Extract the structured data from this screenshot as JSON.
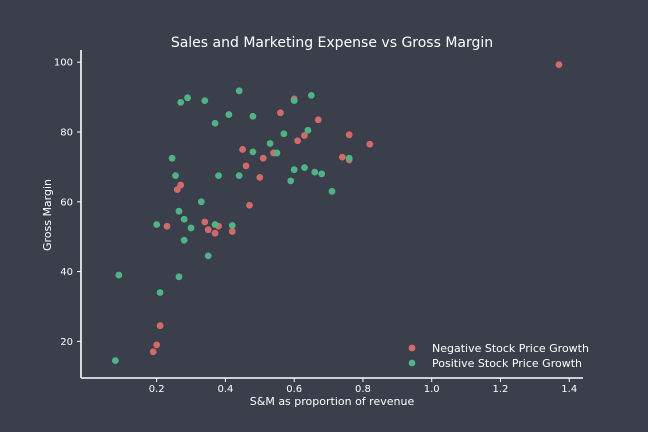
{
  "chart_data": {
    "type": "scatter",
    "title": "Sales and Marketing Expense vs Gross Margin",
    "xlabel": "S&M as proportion of revenue",
    "ylabel": "Gross Margin",
    "xlim": [
      -0.02,
      1.44
    ],
    "ylim": [
      9.5,
      103.5
    ],
    "x_ticks": [
      0.2,
      0.4,
      0.6,
      0.8,
      1.0,
      1.2,
      1.4
    ],
    "x_tick_labels": [
      "0.2",
      "0.4",
      "0.6",
      "0.8",
      "1.0",
      "1.2",
      "1.4"
    ],
    "y_ticks": [
      20,
      40,
      60,
      80,
      100
    ],
    "y_tick_labels": [
      "20",
      "40",
      "60",
      "80",
      "100"
    ],
    "grid": false,
    "legend_position": "bottom-right",
    "series": [
      {
        "name": "Negative Stock Price Growth",
        "color": "#d16b6a",
        "points": [
          [
            0.19,
            17
          ],
          [
            0.2,
            19
          ],
          [
            0.21,
            24.5
          ],
          [
            0.23,
            53
          ],
          [
            0.26,
            63.5
          ],
          [
            0.27,
            64.8
          ],
          [
            0.34,
            54.2
          ],
          [
            0.35,
            52
          ],
          [
            0.37,
            51
          ],
          [
            0.38,
            53
          ],
          [
            0.42,
            51.5
          ],
          [
            0.45,
            75
          ],
          [
            0.46,
            70.3
          ],
          [
            0.47,
            59
          ],
          [
            0.5,
            67
          ],
          [
            0.51,
            72.5
          ],
          [
            0.54,
            74
          ],
          [
            0.56,
            85.5
          ],
          [
            0.6,
            89.5
          ],
          [
            0.61,
            77.5
          ],
          [
            0.63,
            79
          ],
          [
            0.67,
            83.5
          ],
          [
            0.74,
            72.8
          ],
          [
            0.76,
            79.2
          ],
          [
            0.76,
            72
          ],
          [
            0.82,
            76.5
          ],
          [
            1.37,
            99.3
          ]
        ]
      },
      {
        "name": "Positive Stock Price Growth",
        "color": "#4fb386",
        "points": [
          [
            0.08,
            14.5
          ],
          [
            0.09,
            39
          ],
          [
            0.2,
            53.5
          ],
          [
            0.21,
            34
          ],
          [
            0.245,
            72.5
          ],
          [
            0.255,
            67.5
          ],
          [
            0.265,
            38.5
          ],
          [
            0.265,
            57.3
          ],
          [
            0.27,
            88.5
          ],
          [
            0.28,
            49
          ],
          [
            0.28,
            55
          ],
          [
            0.29,
            89.8
          ],
          [
            0.3,
            52.5
          ],
          [
            0.33,
            60
          ],
          [
            0.34,
            89
          ],
          [
            0.35,
            44.5
          ],
          [
            0.37,
            82.5
          ],
          [
            0.37,
            53.5
          ],
          [
            0.38,
            67.5
          ],
          [
            0.41,
            85
          ],
          [
            0.42,
            53.2
          ],
          [
            0.44,
            91.8
          ],
          [
            0.44,
            67.5
          ],
          [
            0.48,
            84.5
          ],
          [
            0.48,
            74.3
          ],
          [
            0.53,
            76.7
          ],
          [
            0.55,
            74
          ],
          [
            0.57,
            79.5
          ],
          [
            0.59,
            66
          ],
          [
            0.6,
            89
          ],
          [
            0.6,
            69.2
          ],
          [
            0.63,
            69.8
          ],
          [
            0.64,
            80.5
          ],
          [
            0.65,
            90.5
          ],
          [
            0.66,
            68.5
          ],
          [
            0.68,
            68
          ],
          [
            0.71,
            63
          ],
          [
            0.76,
            72.5
          ]
        ]
      }
    ]
  }
}
